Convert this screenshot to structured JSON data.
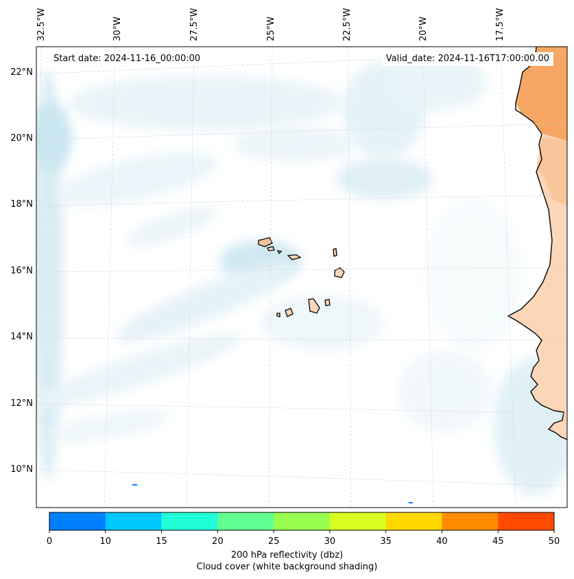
{
  "header": {
    "start_date": "Start date: 2024-11-16_00:00:00",
    "valid_date": "Valid_date: 2024-11-16T17:00:00.00"
  },
  "axes": {
    "lon_ticks": [
      "32.5°W",
      "30°W",
      "27.5°W",
      "25°W",
      "22.5°W",
      "20°W",
      "17.5°W"
    ],
    "lat_ticks": [
      "22°N",
      "20°N",
      "18°N",
      "16°N",
      "14°N",
      "12°N",
      "10°N"
    ]
  },
  "colorbar": {
    "ticks": [
      "0",
      "10",
      "15",
      "20",
      "25",
      "30",
      "35",
      "40",
      "45",
      "50"
    ],
    "colors": [
      "#0080ff",
      "#00c8ff",
      "#20ffd8",
      "#60ff90",
      "#98ff50",
      "#d8ff20",
      "#ffd800",
      "#ff8c00",
      "#ff4a00"
    ],
    "label_line1": "200 hPa reflectivity (dbz)",
    "label_line2": "Cloud cover (white background shading)"
  },
  "colors": {
    "land_warm": "#f6a763",
    "land_light": "#fbd6b8",
    "cloud": "#b8dde9"
  }
}
